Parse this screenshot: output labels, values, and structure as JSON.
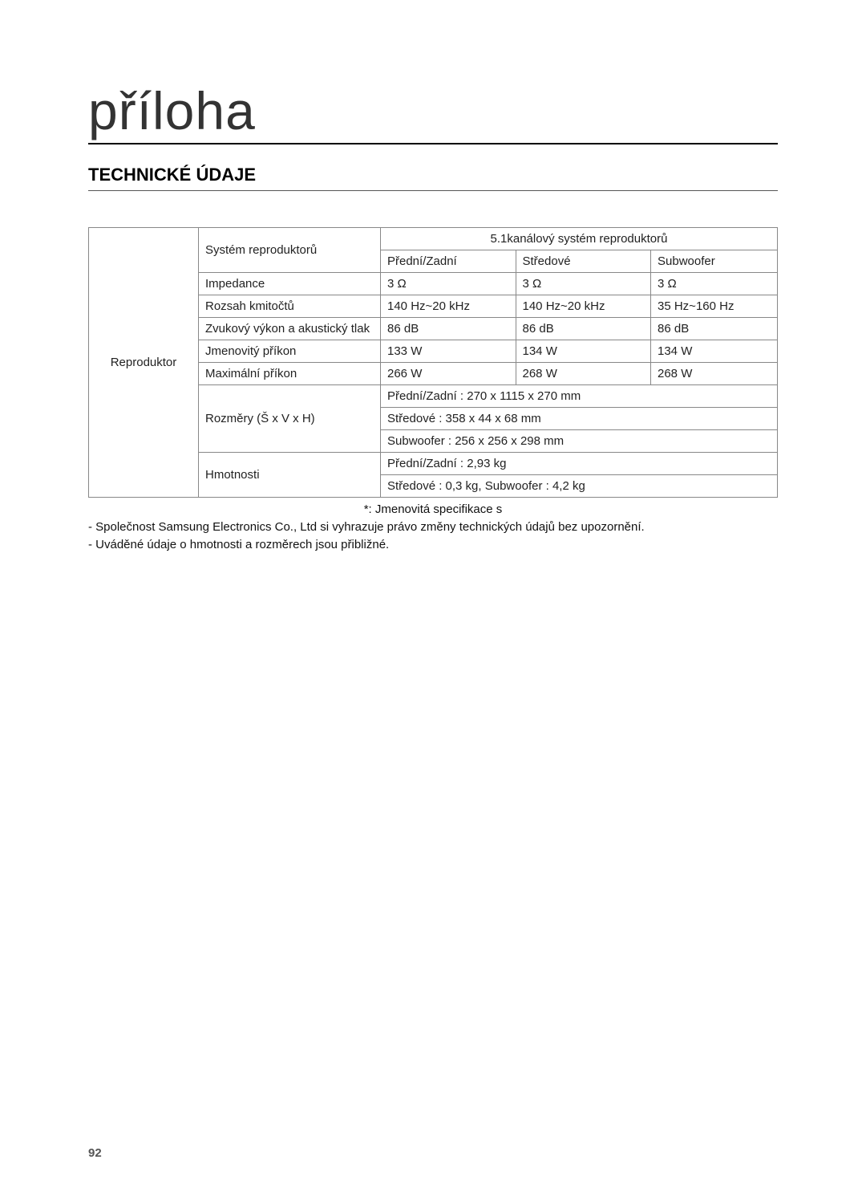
{
  "page_title": "příloha",
  "section_heading": "TECHNICKÉ ÚDAJE",
  "row_label": "Reproduktor",
  "rows": {
    "system_label": "Systém reproduktorů",
    "system_header": "5.1kanálový systém reproduktorů",
    "col_front_rear": "Přední/Zadní",
    "col_center": "Středové",
    "col_sub": "Subwoofer",
    "impedance_label": "Impedance",
    "impedance_front": "3 Ω",
    "impedance_center": "3 Ω",
    "impedance_sub": "3 Ω",
    "freq_label": "Rozsah kmitočtů",
    "freq_front": "140 Hz~20 kHz",
    "freq_center": "140 Hz~20 kHz",
    "freq_sub": "35 Hz~160 Hz",
    "spl_label": "Zvukový výkon a akustický tlak",
    "spl_front": "86 dB",
    "spl_center": "86 dB",
    "spl_sub": "86 dB",
    "rated_label": "Jmenovitý příkon",
    "rated_front": "133 W",
    "rated_center": "134 W",
    "rated_sub": "134 W",
    "max_label": "Maximální příkon",
    "max_front": "266 W",
    "max_center": "268 W",
    "max_sub": "268 W",
    "dim_label": "Rozměry (Š x V x H)",
    "dim_front": "Přední/Zadní : 270 x 1115 x 270 mm",
    "dim_center": "Středové : 358 x 44 x 68 mm",
    "dim_sub": "Subwoofer : 256 x 256 x 298 mm",
    "weight_label": "Hmotnosti",
    "weight_front": "Přední/Zadní : 2,93 kg",
    "weight_center_sub": "Středové : 0,3 kg, Subwoofer : 4,2 kg"
  },
  "notes": {
    "line1": "*: Jmenovitá specifikace s",
    "line2": "- Společnost Samsung Electronics Co., Ltd si vyhrazuje právo změny technických údajů bez upozornění.",
    "line3": "- Uváděné údaje o hmotnosti a rozměrech jsou přibližné."
  },
  "page_number": "92",
  "colors": {
    "text": "#000000",
    "border": "#888888",
    "bg": "#ffffff"
  }
}
